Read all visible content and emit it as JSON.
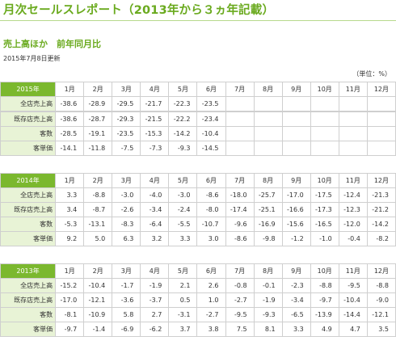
{
  "page_title": "月次セールスレポート（2013年から３ヵ年記載）",
  "section_title": "売上高ほか　前年同月比",
  "update_date": "2015年7月8日更新",
  "unit_note": "（単位：%）",
  "months": [
    "1月",
    "2月",
    "3月",
    "4月",
    "5月",
    "6月",
    "7月",
    "8月",
    "9月",
    "10月",
    "11月",
    "12月"
  ],
  "tables": [
    {
      "year": "2015年",
      "rows": [
        {
          "label": "全店売上高",
          "values": [
            "-38.6",
            "-28.9",
            "-29.5",
            "-21.7",
            "-22.3",
            "-23.5",
            "",
            "",
            "",
            "",
            "",
            ""
          ]
        },
        {
          "label": "既存店売上高",
          "values": [
            "-38.6",
            "-28.7",
            "-29.3",
            "-21.5",
            "-22.2",
            "-23.4",
            "",
            "",
            "",
            "",
            "",
            ""
          ]
        },
        {
          "label": "客数",
          "values": [
            "-28.5",
            "-19.1",
            "-23.5",
            "-15.3",
            "-14.2",
            "-10.4",
            "",
            "",
            "",
            "",
            "",
            ""
          ]
        },
        {
          "label": "客単価",
          "values": [
            "-14.1",
            "-11.8",
            "-7.5",
            "-7.3",
            "-9.3",
            "-14.5",
            "",
            "",
            "",
            "",
            "",
            ""
          ]
        }
      ]
    },
    {
      "year": "2014年",
      "rows": [
        {
          "label": "全店売上高",
          "values": [
            "3.3",
            "-8.8",
            "-3.0",
            "-4.0",
            "-3.0",
            "-8.6",
            "-18.0",
            "-25.7",
            "-17.0",
            "-17.5",
            "-12.4",
            "-21.3"
          ]
        },
        {
          "label": "既存店売上高",
          "values": [
            "3.4",
            "-8.7",
            "-2.6",
            "-3.4",
            "-2.4",
            "-8.0",
            "-17.4",
            "-25.1",
            "-16.6",
            "-17.3",
            "-12.3",
            "-21.2"
          ]
        },
        {
          "label": "客数",
          "values": [
            "-5.3",
            "-13.1",
            "-8.3",
            "-6.4",
            "-5.5",
            "-10.7",
            "-9.6",
            "-16.9",
            "-15.6",
            "-16.5",
            "-12.0",
            "-14.2"
          ]
        },
        {
          "label": "客単価",
          "values": [
            "9.2",
            "5.0",
            "6.3",
            "3.2",
            "3.3",
            "3.0",
            "-8.6",
            "-9.8",
            "-1.2",
            "-1.0",
            "-0.4",
            "-8.2"
          ]
        }
      ]
    },
    {
      "year": "2013年",
      "rows": [
        {
          "label": "全店売上高",
          "values": [
            "-15.2",
            "-10.4",
            "-1.7",
            "-1.9",
            "2.1",
            "2.6",
            "-0.8",
            "-0.1",
            "-2.3",
            "-8.8",
            "-9.5",
            "-8.8"
          ]
        },
        {
          "label": "既存店売上高",
          "values": [
            "-17.0",
            "-12.1",
            "-3.6",
            "-3.7",
            "0.5",
            "1.0",
            "-2.7",
            "-1.9",
            "-3.4",
            "-9.7",
            "-10.4",
            "-9.0"
          ]
        },
        {
          "label": "客数",
          "values": [
            "-8.1",
            "-10.9",
            "5.8",
            "2.7",
            "-3.1",
            "-2.7",
            "-9.5",
            "-9.3",
            "-6.5",
            "-13.9",
            "-14.4",
            "-12.1"
          ]
        },
        {
          "label": "客単価",
          "values": [
            "-9.7",
            "-1.4",
            "-6.9",
            "-6.2",
            "3.7",
            "3.8",
            "7.5",
            "8.1",
            "3.3",
            "4.9",
            "4.7",
            "3.5"
          ]
        }
      ]
    }
  ]
}
